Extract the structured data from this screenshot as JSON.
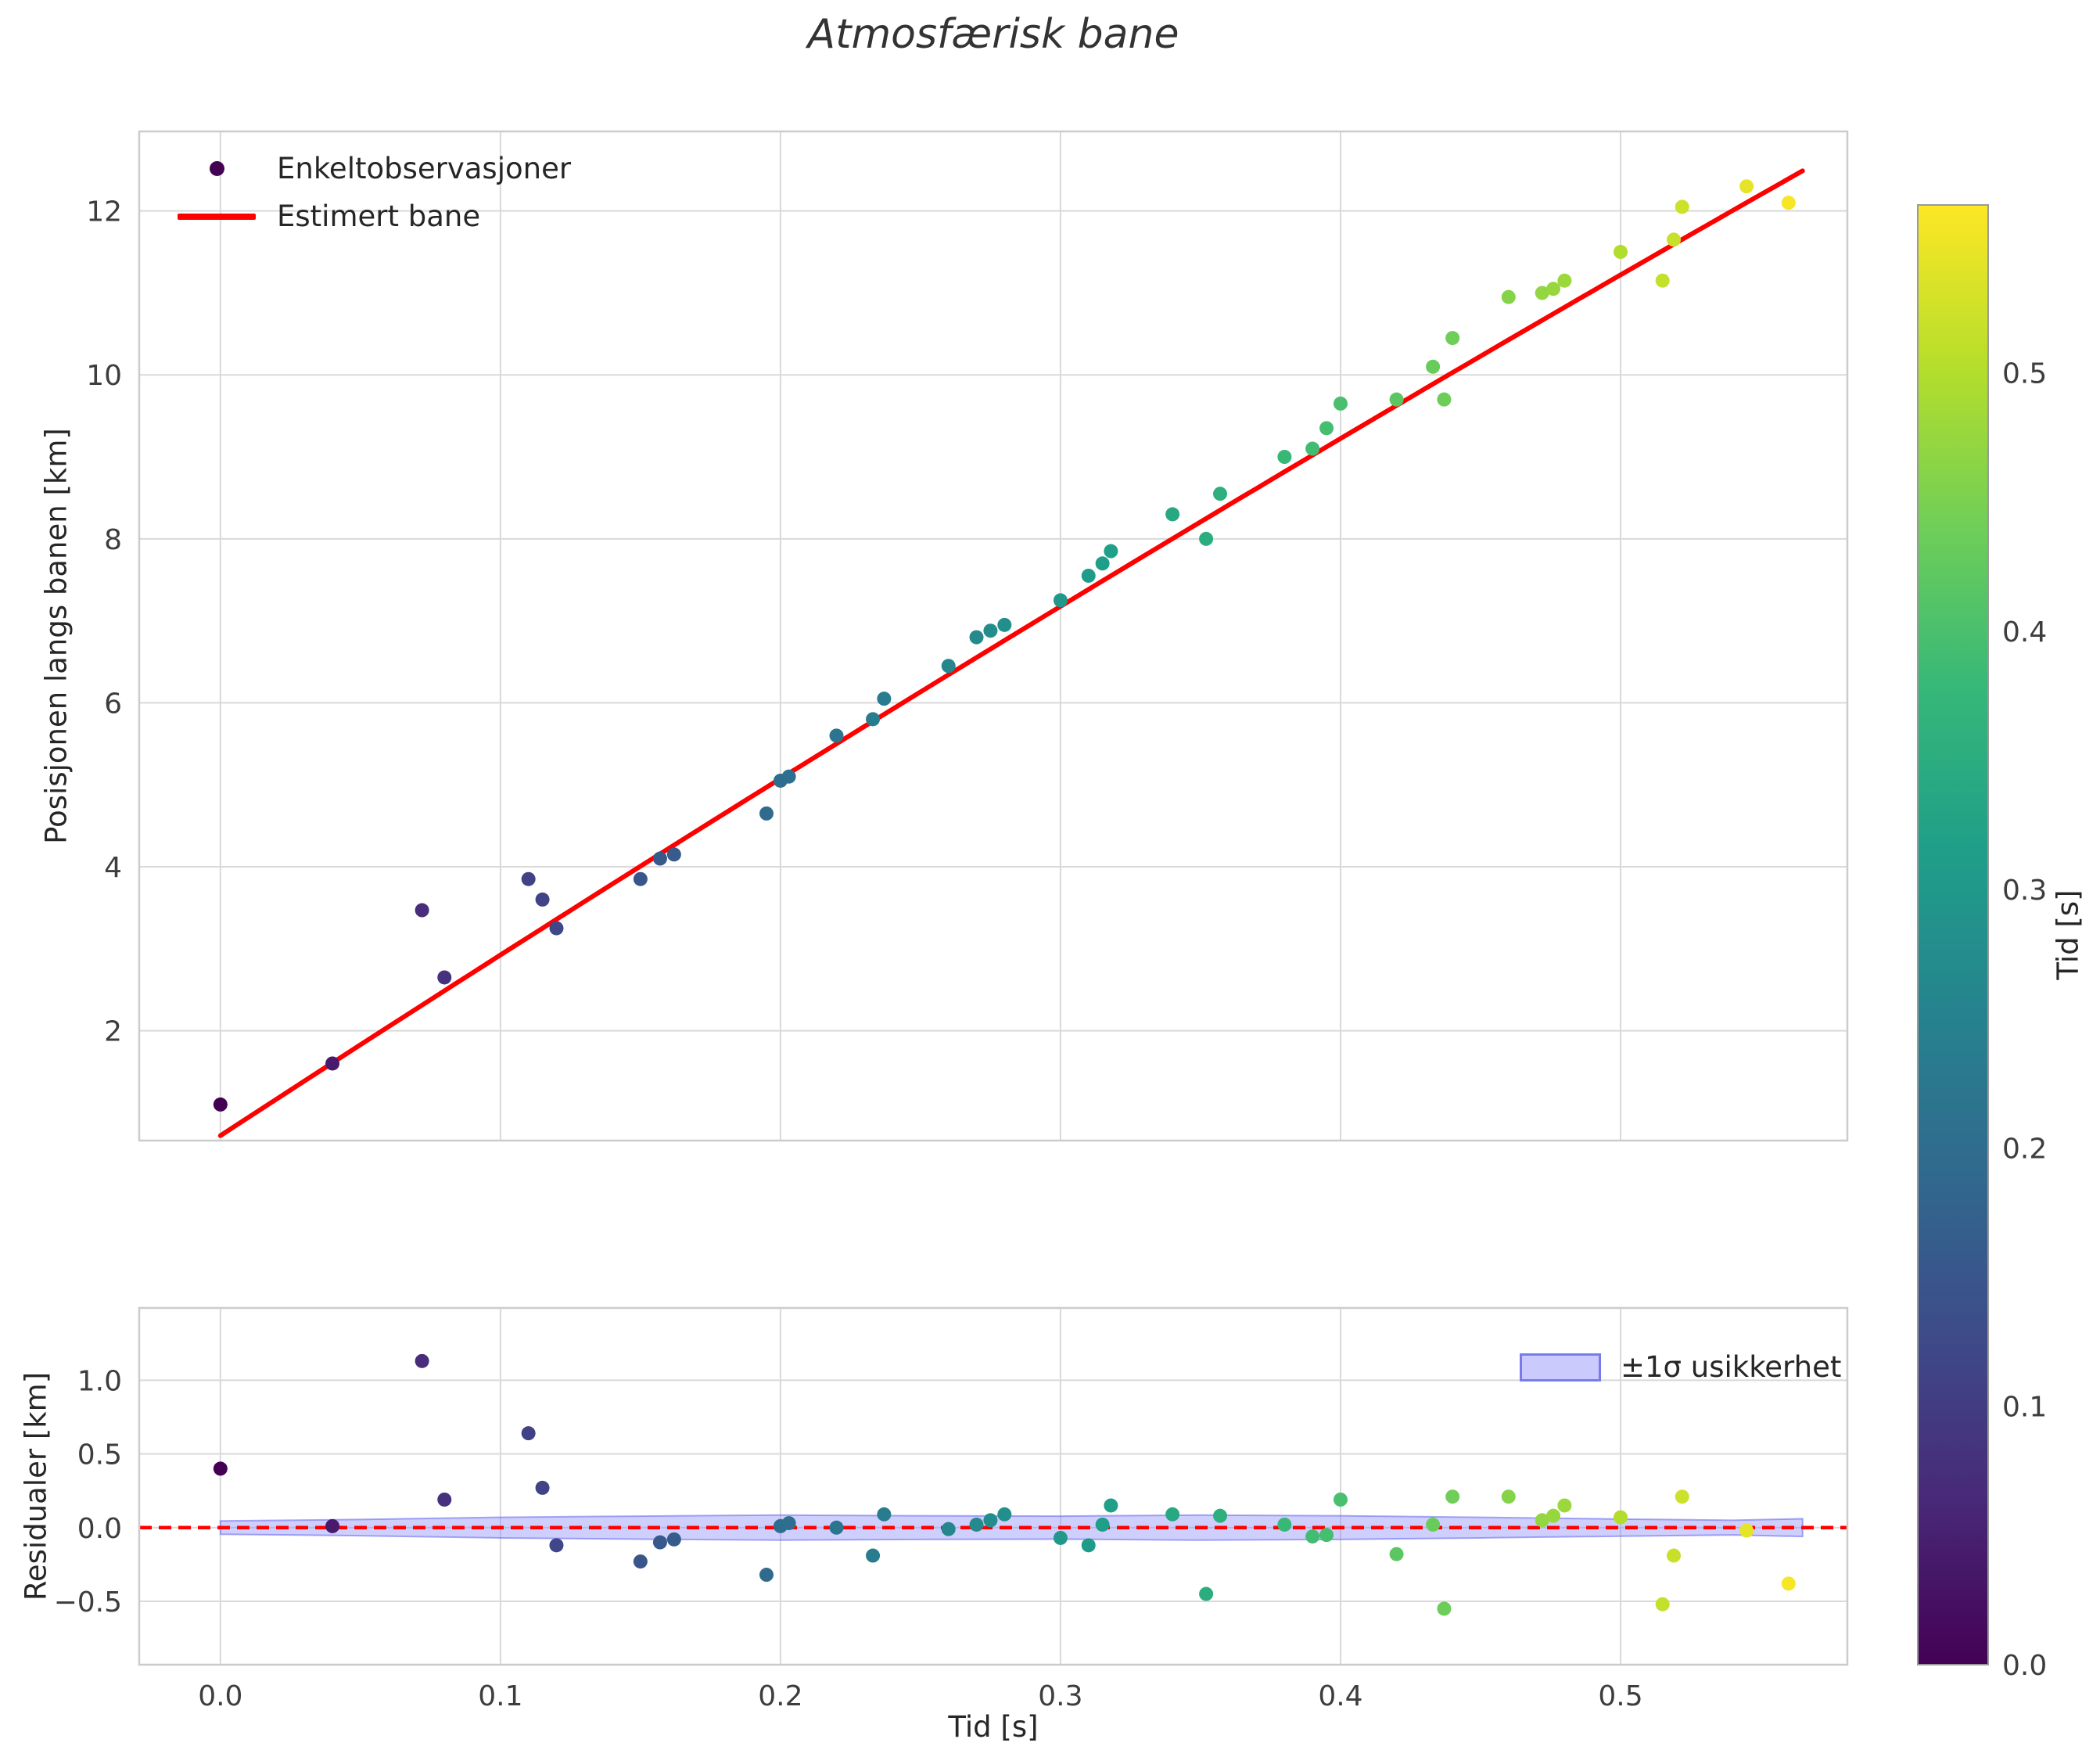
{
  "title": "Atmosfærisk bane",
  "axes": {
    "xlabel": "Tid [s]",
    "xlim": [
      -0.029,
      0.581
    ],
    "x_ticks": [
      0.0,
      0.1,
      0.2,
      0.3,
      0.4,
      0.5
    ],
    "x_tick_labels": [
      "0.0",
      "0.1",
      "0.2",
      "0.3",
      "0.4",
      "0.5"
    ],
    "main": {
      "ylabel": "Posisjonen langs banen [km]",
      "ylim": [
        0.66,
        12.97
      ],
      "y_ticks": [
        2,
        4,
        6,
        8,
        10,
        12
      ],
      "y_tick_labels": [
        "2",
        "4",
        "6",
        "8",
        "10",
        "12"
      ]
    },
    "residual": {
      "ylabel": "Residualer [km]",
      "ylim": [
        -0.93,
        1.49
      ],
      "y_ticks": [
        -0.5,
        0.0,
        0.5,
        1.0
      ],
      "y_tick_labels": [
        "−0.5",
        "0.0",
        "0.5",
        "1.0"
      ]
    }
  },
  "legend_main": {
    "items": [
      {
        "label": "Enkeltobservasjoner",
        "marker": "dot",
        "color": "#440154"
      },
      {
        "label": "Estimert bane",
        "marker": "line",
        "color": "#ff0000"
      }
    ]
  },
  "legend_residual": {
    "items": [
      {
        "label": "±1σ usikkerhet",
        "marker": "patch",
        "color": "#8a8af8"
      }
    ]
  },
  "colorbar": {
    "label": "Tid [s]",
    "colormap": "viridis",
    "vmin": 0.0,
    "vmax": 0.565,
    "ticks": [
      0.0,
      0.1,
      0.2,
      0.3,
      0.4,
      0.5
    ],
    "tick_labels": [
      "0.0",
      "0.1",
      "0.2",
      "0.3",
      "0.4",
      "0.5"
    ]
  },
  "chart_data": [
    {
      "type": "scatter",
      "title": "Atmosfærisk bane",
      "xlabel": "Tid [s]",
      "ylabel": "Posisjonen langs banen [km]",
      "xlim": [
        -0.029,
        0.581
      ],
      "ylim": [
        0.66,
        12.97
      ],
      "grid": true,
      "legend_position": "upper left",
      "series": [
        {
          "name": "Enkeltobservasjoner",
          "type": "scatter",
          "color_by": "x",
          "colormap": "viridis",
          "x": [
            0.0,
            0.04,
            0.072,
            0.08,
            0.11,
            0.115,
            0.12,
            0.15,
            0.157,
            0.162,
            0.195,
            0.2,
            0.203,
            0.22,
            0.233,
            0.237,
            0.26,
            0.27,
            0.275,
            0.28,
            0.3,
            0.31,
            0.315,
            0.318,
            0.34,
            0.352,
            0.357,
            0.38,
            0.39,
            0.395,
            0.4,
            0.42,
            0.433,
            0.437,
            0.44,
            0.46,
            0.472,
            0.476,
            0.48,
            0.5,
            0.515,
            0.519,
            0.522,
            0.545,
            0.56
          ],
          "y": [
            1.1,
            1.6,
            3.47,
            2.65,
            3.85,
            3.6,
            3.25,
            3.85,
            4.1,
            4.15,
            4.65,
            5.05,
            5.1,
            5.6,
            5.8,
            6.05,
            6.45,
            6.8,
            6.88,
            6.95,
            7.25,
            7.55,
            7.7,
            7.85,
            8.3,
            8.0,
            8.55,
            9.0,
            9.1,
            9.35,
            9.65,
            9.7,
            10.1,
            9.7,
            10.45,
            10.95,
            11.0,
            11.05,
            11.15,
            11.5,
            11.15,
            11.65,
            12.05,
            12.3,
            12.1
          ]
        },
        {
          "name": "Estimert bane",
          "type": "line",
          "fit": "quadratic",
          "coefficients": [
            0.72,
            22.3,
            -2.6
          ],
          "x_range": [
            0.0,
            0.565
          ],
          "color": "#ff0000"
        }
      ]
    },
    {
      "type": "scatter",
      "ylabel": "Residualer [km]",
      "xlim": [
        -0.029,
        0.581
      ],
      "ylim": [
        -0.93,
        1.49
      ],
      "grid": true,
      "zero_line": {
        "y": 0,
        "style": "dashed",
        "color": "#ff0000"
      },
      "band": {
        "label": "±1σ usikkerhet",
        "color": "#8a8af8",
        "x": [
          0.0,
          0.05,
          0.1,
          0.15,
          0.2,
          0.25,
          0.3,
          0.35,
          0.4,
          0.45,
          0.5,
          0.54,
          0.565
        ],
        "sigma": [
          0.045,
          0.055,
          0.07,
          0.078,
          0.085,
          0.08,
          0.078,
          0.085,
          0.08,
          0.07,
          0.058,
          0.05,
          0.06
        ]
      },
      "series": [
        {
          "name": "residuals",
          "type": "scatter",
          "color_by": "x",
          "colormap": "viridis",
          "x": [
            0.0,
            0.04,
            0.072,
            0.08,
            0.11,
            0.115,
            0.12,
            0.15,
            0.157,
            0.162,
            0.195,
            0.2,
            0.203,
            0.22,
            0.233,
            0.237,
            0.26,
            0.27,
            0.275,
            0.28,
            0.3,
            0.31,
            0.315,
            0.318,
            0.34,
            0.352,
            0.357,
            0.38,
            0.39,
            0.395,
            0.4,
            0.42,
            0.433,
            0.437,
            0.44,
            0.46,
            0.472,
            0.476,
            0.48,
            0.5,
            0.515,
            0.519,
            0.522,
            0.545,
            0.56
          ],
          "y": [
            0.4,
            0.01,
            1.13,
            0.19,
            0.64,
            0.27,
            -0.12,
            -0.23,
            -0.1,
            -0.08,
            -0.32,
            0.01,
            0.03,
            0.0,
            -0.19,
            0.09,
            -0.01,
            0.02,
            0.05,
            0.09,
            -0.07,
            -0.12,
            0.02,
            0.15,
            0.09,
            -0.45,
            0.08,
            0.02,
            -0.06,
            -0.05,
            0.19,
            -0.18,
            0.02,
            -0.55,
            0.21,
            0.21,
            0.05,
            0.08,
            0.15,
            0.07,
            -0.52,
            -0.19,
            0.21,
            -0.02,
            -0.38
          ]
        }
      ]
    }
  ],
  "style": {
    "grid_color": "#d9d9d9",
    "spine_color": "#cccccc",
    "tick_color": "#3d3d3d",
    "fit_color": "#ff0000",
    "band_fill": "rgba(130,130,250,0.38)",
    "band_edge": "rgba(110,110,240,0.6)"
  }
}
